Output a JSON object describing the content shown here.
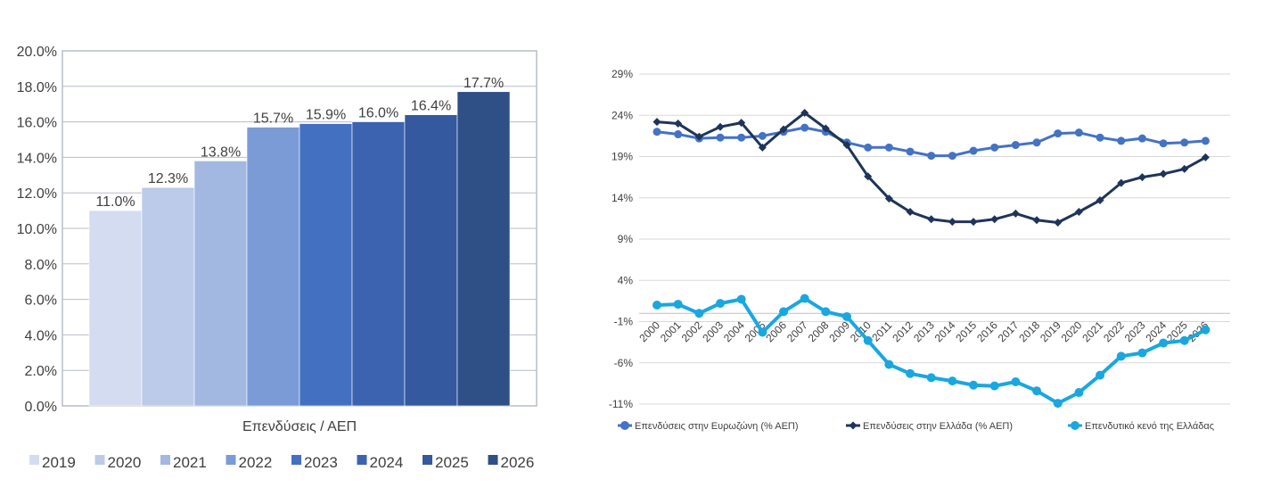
{
  "chart_data": [
    {
      "type": "bar",
      "title": "",
      "xlabel": "Επενδύσεις / ΑΕΠ",
      "ylabel": "",
      "ylim": [
        0,
        20
      ],
      "yticks": [
        "0.0%",
        "2.0%",
        "4.0%",
        "6.0%",
        "8.0%",
        "10.0%",
        "12.0%",
        "14.0%",
        "16.0%",
        "18.0%",
        "20.0%"
      ],
      "categories": [
        "2019",
        "2020",
        "2021",
        "2022",
        "2023",
        "2024",
        "2025",
        "2026"
      ],
      "values": [
        11.0,
        12.3,
        13.8,
        15.7,
        15.9,
        16.0,
        16.4,
        17.7
      ],
      "data_labels": [
        "11.0%",
        "12.3%",
        "13.8%",
        "15.7%",
        "15.9%",
        "16.0%",
        "16.4%",
        "17.7%"
      ],
      "colors": [
        "#d3dcf0",
        "#bccbea",
        "#a3b8e1",
        "#7b9bd6",
        "#4470c2",
        "#3b63b0",
        "#34599f",
        "#2f4f87"
      ],
      "legend": [
        "2019",
        "2020",
        "2021",
        "2022",
        "2023",
        "2024",
        "2025",
        "2026"
      ],
      "legend_position": "bottom"
    },
    {
      "type": "line",
      "title": "",
      "ylim": [
        -11,
        29
      ],
      "yticks": [
        "-11%",
        "-6%",
        "-1%",
        "4%",
        "9%",
        "14%",
        "19%",
        "24%",
        "29%"
      ],
      "x": [
        "2000",
        "2001",
        "2002",
        "2003",
        "2004",
        "2005",
        "2006",
        "2007",
        "2008",
        "2009",
        "2010",
        "2011",
        "2012",
        "2013",
        "2014",
        "2015",
        "2016",
        "2017",
        "2018",
        "2019",
        "2020",
        "2021",
        "2022",
        "2023",
        "2024",
        "2025",
        "2026"
      ],
      "series": [
        {
          "name": "Επενδύσεις στην Ευρωζώνη (% ΑΕΠ)",
          "color": "#4472c4",
          "marker": "circle",
          "values": [
            22.0,
            21.7,
            21.2,
            21.3,
            21.3,
            21.5,
            22.0,
            22.5,
            22.0,
            20.7,
            20.1,
            20.1,
            19.6,
            19.1,
            19.1,
            19.7,
            20.1,
            20.4,
            20.7,
            21.8,
            21.9,
            21.3,
            20.9,
            21.2,
            20.6,
            20.7,
            20.9
          ]
        },
        {
          "name": "Επενδύσεις στην Ελλάδα (% ΑΕΠ)",
          "color": "#1f3459",
          "marker": "diamond",
          "values": [
            23.2,
            23.0,
            21.4,
            22.6,
            23.1,
            20.1,
            22.3,
            24.3,
            22.4,
            20.4,
            16.6,
            13.9,
            12.3,
            11.4,
            11.1,
            11.1,
            11.4,
            12.1,
            11.3,
            11.0,
            12.3,
            13.7,
            15.8,
            16.5,
            16.9,
            17.5,
            18.9
          ]
        },
        {
          "name": "Επενδυτικό κενό της Ελλάδας",
          "color": "#1aa7df",
          "marker": "circle",
          "values": [
            1.0,
            1.1,
            0.0,
            1.2,
            1.7,
            -2.3,
            0.2,
            1.8,
            0.2,
            -0.4,
            -3.3,
            -6.2,
            -7.3,
            -7.8,
            -8.2,
            -8.7,
            -8.8,
            -8.3,
            -9.4,
            -10.9,
            -9.6,
            -7.5,
            -5.2,
            -4.8,
            -3.6,
            -3.3,
            -2.0
          ]
        }
      ],
      "legend_position": "bottom"
    }
  ]
}
